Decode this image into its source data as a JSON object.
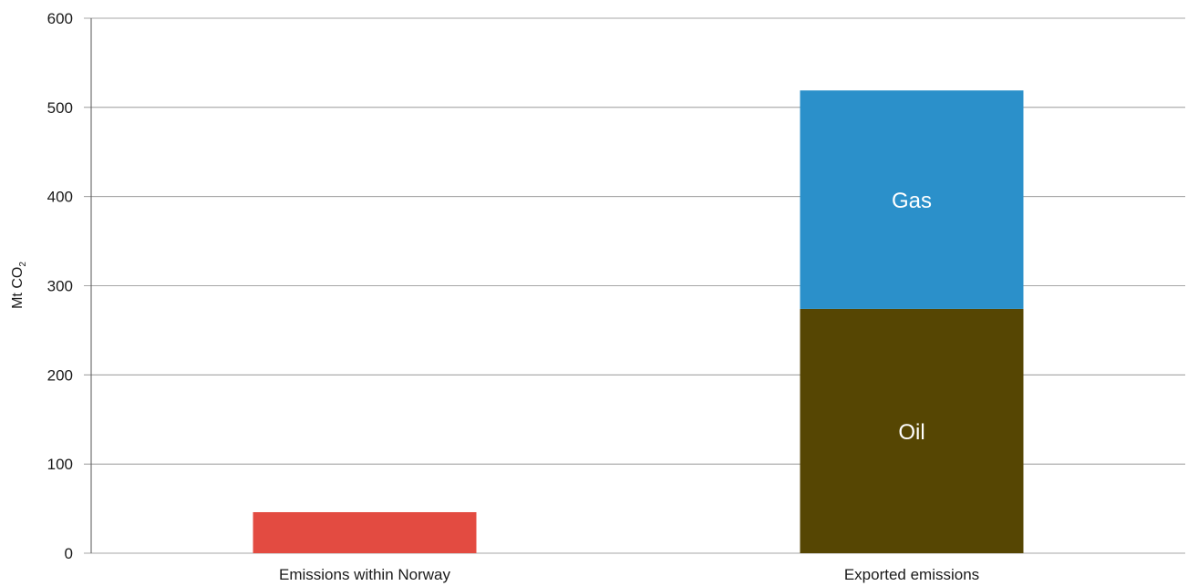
{
  "chart_data": {
    "type": "bar",
    "stacked": true,
    "ylabel": "Mt CO",
    "ylabel_subscript": "2",
    "ylim": [
      0,
      600
    ],
    "yticks": [
      0,
      100,
      200,
      300,
      400,
      500,
      600
    ],
    "grid": true,
    "bars": [
      {
        "category": "Emissions within Norway",
        "segments": [
          {
            "label": "",
            "value": 46,
            "color": "#e34b41"
          }
        ]
      },
      {
        "category": "Exported emissions",
        "segments": [
          {
            "label": "Oil",
            "value": 274,
            "color": "#564603"
          },
          {
            "label": "Gas",
            "value": 245,
            "color": "#2b90ca"
          }
        ]
      }
    ]
  }
}
